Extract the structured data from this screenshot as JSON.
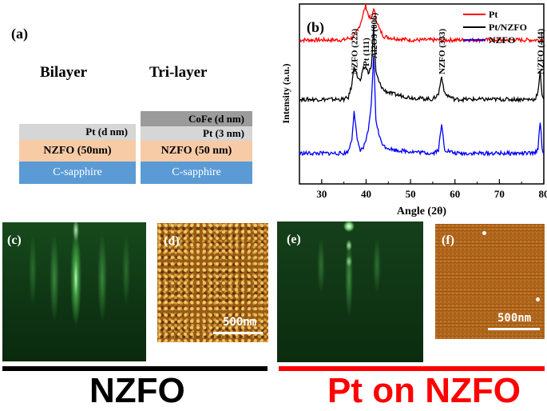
{
  "panel_a": {
    "label": "(a)",
    "bilayer": {
      "title": "Bilayer",
      "layers": [
        "Pt (d nm)",
        "NZFO (50nm)",
        "C-sapphire"
      ]
    },
    "trilayer": {
      "title": "Tri-layer",
      "layers": [
        "CoFe (d nm)",
        "Pt (3 nm)",
        "NZFO (50 nm)",
        "C-sapphire"
      ]
    }
  },
  "chart_data": {
    "type": "line",
    "panel_label": "(b)",
    "xlabel": "Angle (2θ)",
    "ylabel": "Intensity (a.u.)",
    "xlim": [
      25,
      80
    ],
    "ylim": [
      0,
      100
    ],
    "x_ticks": [
      "30",
      "40",
      "50",
      "60",
      "70",
      "80"
    ],
    "x": [
      25,
      30,
      35,
      36,
      36.8,
      37.3,
      38,
      38.7,
      39.4,
      39.9,
      40.5,
      41.2,
      41.7,
      42.2,
      43,
      44,
      46,
      50,
      55,
      56.3,
      57,
      57.7,
      60,
      65,
      70,
      75,
      78,
      78.7,
      79.2,
      79.6,
      80
    ],
    "series": [
      {
        "name": "Pt",
        "color": "#ff0000",
        "values": [
          80,
          80,
          80,
          81,
          81,
          82,
          85,
          89,
          95,
          99,
          94,
          91,
          98,
          92,
          86,
          82,
          81,
          80,
          80,
          80,
          80,
          80,
          80,
          80,
          80,
          80,
          80,
          80,
          80,
          80,
          80
        ]
      },
      {
        "name": "Pt/NZFO",
        "color": "#000000",
        "values": [
          47,
          47,
          47,
          48,
          55,
          66,
          60,
          57,
          64,
          65,
          62,
          65,
          88,
          62,
          56,
          52,
          50,
          48,
          47,
          50,
          60,
          50,
          47,
          47,
          47,
          47,
          47,
          51,
          62,
          50,
          47
        ]
      },
      {
        "name": "NZFO",
        "color": "#0000ff",
        "values": [
          17,
          17,
          17,
          18,
          25,
          41,
          24,
          19,
          20,
          24,
          29,
          45,
          72,
          36,
          26,
          21,
          19,
          18,
          17,
          19,
          33,
          19,
          17,
          17,
          17,
          17,
          17,
          20,
          35,
          20,
          17
        ]
      }
    ],
    "annotations": [
      {
        "text": "NZFO (222)",
        "x": 37.3
      },
      {
        "text": "Pt (111)",
        "x": 39.9
      },
      {
        "text": "Al2O3 (006)",
        "x": 41.7
      },
      {
        "text": "NZFO (333)",
        "x": 57
      },
      {
        "text": "NZFO (444)",
        "x": 79.2
      }
    ]
  },
  "panel_c": {
    "label": "(c)"
  },
  "panel_d": {
    "label": "(d)",
    "scale_bar": "500nm"
  },
  "panel_e": {
    "label": "(e)"
  },
  "panel_f": {
    "label": "(f)",
    "scale_bar": "500nm"
  },
  "bottom": {
    "left_label": "NZFO",
    "left_color": "#000000",
    "right_label": "Pt on NZFO",
    "right_color": "#ff0000"
  }
}
